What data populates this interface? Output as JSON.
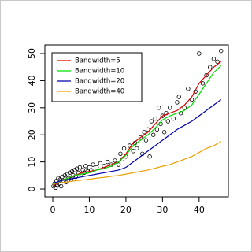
{
  "chart_data": {
    "type": "scatter",
    "xlim": [
      -2.15,
      48.0
    ],
    "ylim": [
      -2.9,
      53.2
    ],
    "xticks": [
      0,
      10,
      20,
      30,
      40
    ],
    "yticks": [
      0,
      10,
      20,
      30,
      40,
      50
    ],
    "legend": "topleft",
    "points": {
      "color": "#000000",
      "x": [
        0.2,
        0.5,
        0.8,
        1,
        1.2,
        1.5,
        1.8,
        2,
        2.3,
        2.6,
        3,
        3.3,
        3.6,
        4,
        4.3,
        4.6,
        5,
        5.3,
        5.6,
        6,
        6.3,
        6.6,
        7,
        7.4,
        7.8,
        8.2,
        8.6,
        9,
        9.5,
        10,
        10.5,
        11,
        12,
        13,
        14,
        15,
        16,
        17,
        18,
        18.5,
        19,
        19.5,
        20,
        21,
        22,
        22.5,
        23,
        24,
        24.5,
        25,
        25.5,
        26,
        26.5,
        27,
        27.5,
        28,
        28.5,
        29,
        29.5,
        30,
        30.5,
        31,
        31.5,
        32,
        33,
        34,
        34.5,
        35,
        36,
        37,
        38,
        39,
        40,
        41,
        42,
        43,
        44,
        45,
        46
      ],
      "values": [
        1,
        2,
        0.5,
        3,
        1.5,
        4,
        2,
        3.5,
        1,
        4.5,
        3,
        5,
        2.5,
        5.5,
        4,
        6,
        3.5,
        6.5,
        5,
        7,
        4.5,
        7.5,
        6,
        8,
        5.5,
        7,
        6,
        8.5,
        6.5,
        8,
        7,
        9,
        8,
        9.5,
        8.5,
        10,
        9,
        10.5,
        9,
        13,
        11,
        15,
        12,
        16,
        14,
        17,
        15,
        19,
        13,
        21,
        18,
        22,
        12,
        25,
        20,
        26,
        22,
        30,
        24,
        27,
        21,
        28,
        25,
        30,
        26,
        32,
        34,
        28,
        30,
        37,
        33,
        36,
        50,
        39,
        42,
        45,
        48,
        47,
        51
      ]
    },
    "x": [
      0,
      2,
      4,
      6,
      8,
      10,
      12,
      14,
      16,
      18,
      20,
      22,
      24,
      26,
      28,
      30,
      32,
      34,
      36,
      38,
      40,
      42,
      44,
      46
    ],
    "series": [
      {
        "name": "Bandwidth=5",
        "color": "#dd0000",
        "values": [
          1,
          3,
          4,
          5,
          6,
          6.5,
          7,
          8,
          9,
          10,
          13,
          17,
          19,
          21,
          24,
          27,
          28,
          29,
          31,
          34,
          39,
          42,
          45,
          47
        ]
      },
      {
        "name": "Bandwidth=10",
        "color": "#00dd00",
        "values": [
          1.5,
          3,
          4,
          5,
          5.5,
          6,
          7,
          7.5,
          8.5,
          10,
          12.5,
          16,
          18,
          20,
          22.5,
          25.5,
          27,
          28,
          29,
          31,
          35,
          39,
          43,
          45.5
        ]
      },
      {
        "name": "Bandwidth=20",
        "color": "#0000aa",
        "values": [
          2,
          3,
          3.5,
          4,
          4.5,
          5,
          5.5,
          6,
          6.5,
          7,
          8,
          10,
          12,
          14,
          16,
          18,
          20,
          22,
          23.5,
          25,
          27,
          29,
          31,
          33
        ]
      },
      {
        "name": "Bandwidth=40",
        "color": "#e8a000",
        "values": [
          2,
          2.3,
          2.6,
          3,
          3.3,
          3.6,
          4,
          4.3,
          4.7,
          5,
          5.5,
          6,
          6.5,
          7,
          7.7,
          8.4,
          9,
          10,
          11,
          12,
          13.5,
          15,
          16,
          17.5
        ]
      }
    ]
  }
}
